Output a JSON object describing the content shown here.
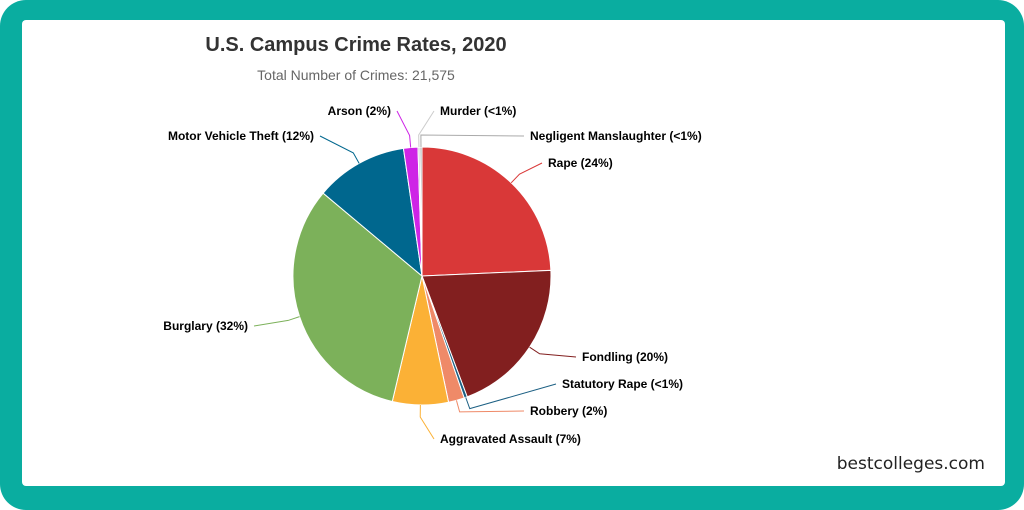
{
  "chart_data": {
    "type": "pie",
    "title": "U.S. Campus Crime Rates, 2020",
    "subtitle": "Total Number of Crimes: 21,575",
    "slices": [
      {
        "name": "Rape",
        "pct_label": "24%",
        "value": 24.3,
        "color": "#d93838"
      },
      {
        "name": "Fondling",
        "pct_label": "20%",
        "value": 20.0,
        "color": "#821f1f"
      },
      {
        "name": "Statutory Rape",
        "pct_label": "<1%",
        "value": 0.4,
        "color": "#1b5f83"
      },
      {
        "name": "Robbery",
        "pct_label": "2%",
        "value": 2.0,
        "color": "#ef8a68"
      },
      {
        "name": "Aggravated Assault",
        "pct_label": "7%",
        "value": 7.0,
        "color": "#fbb136"
      },
      {
        "name": "Burglary",
        "pct_label": "32%",
        "value": 32.4,
        "color": "#7cb15a"
      },
      {
        "name": "Motor Vehicle Theft",
        "pct_label": "12%",
        "value": 11.6,
        "color": "#00678e"
      },
      {
        "name": "Arson",
        "pct_label": "2%",
        "value": 1.8,
        "color": "#ce24e6"
      },
      {
        "name": "Murder",
        "pct_label": "<1%",
        "value": 0.25,
        "color": "#cccccc"
      },
      {
        "name": "Negligent Manslaughter",
        "pct_label": "<1%",
        "value": 0.25,
        "color": "#aaaaaa"
      }
    ]
  },
  "watermark": "bestcolleges.com"
}
